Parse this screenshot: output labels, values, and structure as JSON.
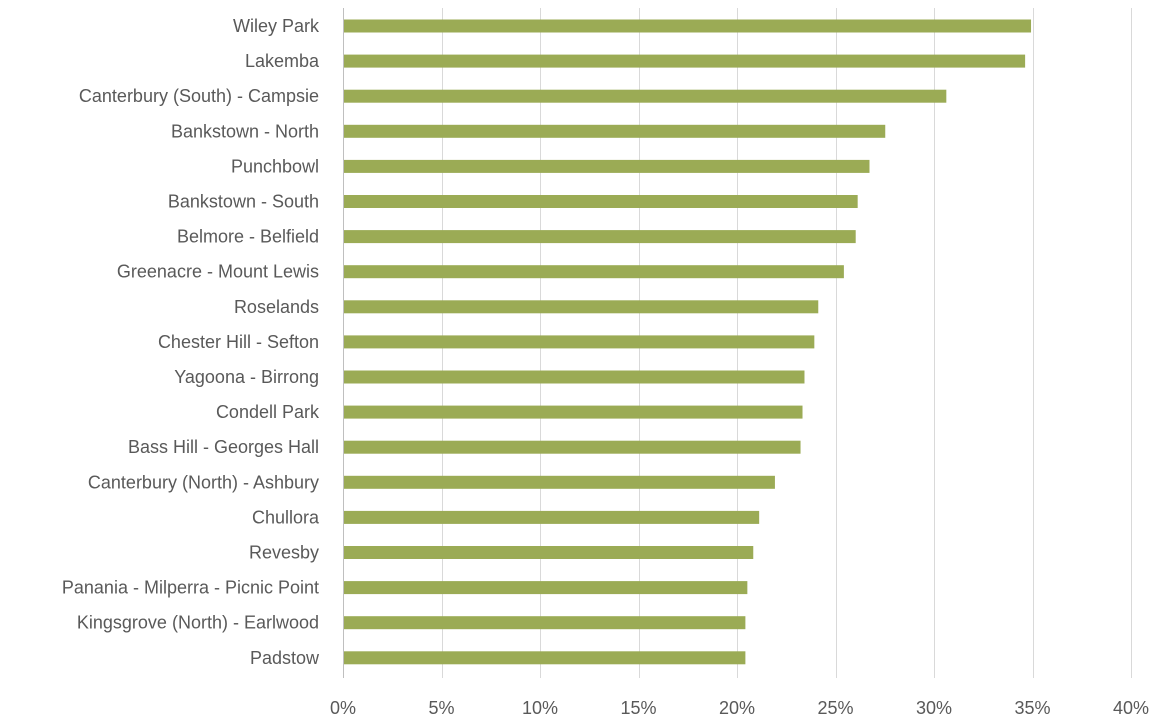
{
  "chart_data": {
    "type": "bar",
    "orientation": "horizontal",
    "title": "",
    "xlabel": "",
    "ylabel": "",
    "categories": [
      "Wiley Park",
      "Lakemba",
      "Canterbury (South) - Campsie",
      "Bankstown - North",
      "Punchbowl",
      "Bankstown - South",
      "Belmore - Belfield",
      "Greenacre - Mount Lewis",
      "Roselands",
      "Chester Hill - Sefton",
      "Yagoona - Birrong",
      "Condell Park",
      "Bass Hill - Georges Hall",
      "Canterbury (North) - Ashbury",
      "Chullora",
      "Revesby",
      "Panania - Milperra - Picnic Point",
      "Kingsgrove (North) - Earlwood",
      "Padstow"
    ],
    "values": [
      34.9,
      34.6,
      30.6,
      27.5,
      26.7,
      26.1,
      26.0,
      25.4,
      24.1,
      23.9,
      23.4,
      23.3,
      23.2,
      21.9,
      21.1,
      20.8,
      20.5,
      20.4,
      20.4
    ],
    "value_unit": "%",
    "xlim": [
      0,
      40
    ],
    "x_ticks": [
      0,
      5,
      10,
      15,
      20,
      25,
      30,
      35,
      40
    ],
    "x_tick_labels": [
      "0%",
      "5%",
      "10%",
      "15%",
      "20%",
      "25%",
      "30%",
      "35%",
      "40%"
    ],
    "grid": true,
    "legend": "none",
    "colors": {
      "bar": "#9bab55",
      "grid": "#d9d9d9",
      "axis": "#bfbfbf",
      "text": "#595959"
    }
  }
}
